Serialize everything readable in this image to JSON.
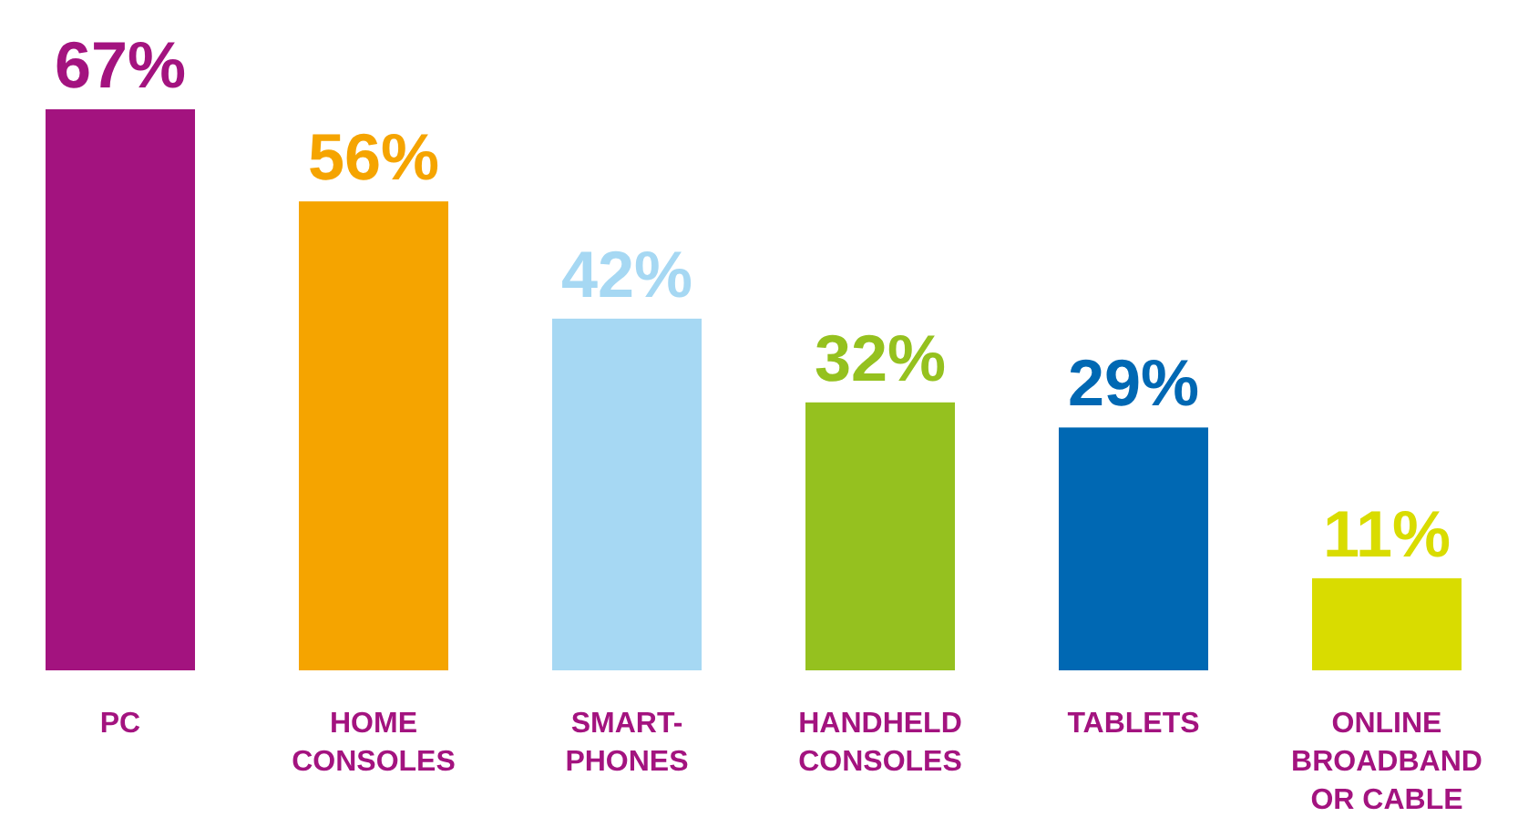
{
  "chart_data": {
    "type": "bar",
    "categories": [
      "PC",
      "HOME CONSOLES",
      "SMART-PHONES",
      "HANDHELD CONSOLES",
      "TABLETS",
      "ONLINE BROADBAND OR CABLE"
    ],
    "values": [
      67,
      56,
      42,
      32,
      29,
      11
    ],
    "colors": [
      "#a3137f",
      "#f5a400",
      "#a6d8f3",
      "#95c11f",
      "#0068b3",
      "#d9dc00"
    ],
    "value_labels": [
      "67%",
      "56%",
      "42%",
      "32%",
      "29%",
      "11%"
    ]
  }
}
